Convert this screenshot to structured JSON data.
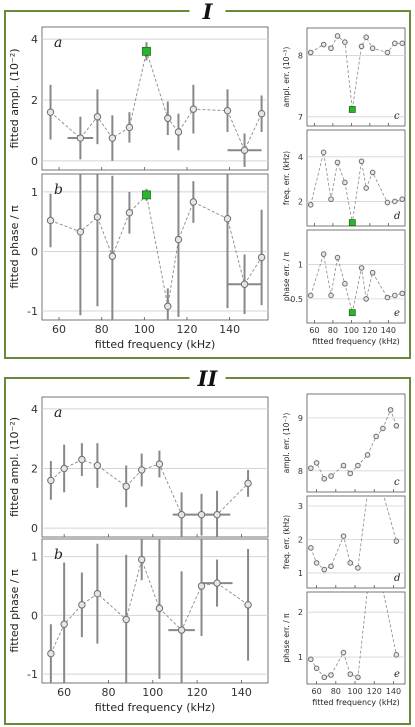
{
  "figure": {
    "block_labels": [
      "I",
      "II"
    ]
  },
  "colors": {
    "frame_border": "#6a8a3a",
    "data_gray": "#8a8a8a",
    "error_bar": "#888888",
    "grid": "#d4d4d4",
    "marker_face": "#e6e6e6",
    "highlight": "#2bb52b"
  },
  "chart_data": [
    {
      "id": "I-a",
      "type": "scatter",
      "panel_label": "a",
      "ylabel": "fitted ampl. (10⁻²)",
      "xlabel": "",
      "xlim": [
        52,
        158
      ],
      "ylim": [
        -0.3,
        4.4
      ],
      "yticks": [
        0,
        2,
        4
      ],
      "yticklabels": [
        "0",
        "2",
        "4"
      ],
      "xticks": [
        60,
        80,
        100,
        120,
        140
      ],
      "points": [
        {
          "x": 56,
          "y": 1.6,
          "yerr": 0.9
        },
        {
          "x": 70,
          "y": 0.75,
          "yerr": 0.7,
          "xerr": 6
        },
        {
          "x": 78,
          "y": 1.45,
          "yerr": 0.9
        },
        {
          "x": 85,
          "y": 0.75,
          "yerr": 0.75
        },
        {
          "x": 93,
          "y": 1.1,
          "yerr": 0.5
        },
        {
          "x": 101,
          "y": 3.6,
          "yerr": 0.3,
          "highlight": true
        },
        {
          "x": 111,
          "y": 1.4,
          "yerr": 0.55
        },
        {
          "x": 116,
          "y": 0.95,
          "yerr": 0.6
        },
        {
          "x": 123,
          "y": 1.7,
          "yerr": 0.8
        },
        {
          "x": 139,
          "y": 1.65,
          "yerr": 0.7
        },
        {
          "x": 147,
          "y": 0.35,
          "yerr": 0.55,
          "xerr": 8
        },
        {
          "x": 155,
          "y": 1.55,
          "yerr": 0.6
        }
      ]
    },
    {
      "id": "I-b",
      "type": "scatter",
      "panel_label": "b",
      "ylabel": "fitted phase / π",
      "xlabel": "fitted frequency (kHz)",
      "xlim": [
        52,
        158
      ],
      "ylim": [
        -1.15,
        1.3
      ],
      "yticks": [
        -1,
        0,
        1
      ],
      "yticklabels": [
        "-1",
        "0",
        "1"
      ],
      "xticks": [
        60,
        80,
        100,
        120,
        140
      ],
      "xticklabels": [
        "60",
        "80",
        "100",
        "120",
        "140"
      ],
      "points": [
        {
          "x": 56,
          "y": 0.52,
          "yerr": 0.45
        },
        {
          "x": 70,
          "y": 0.33,
          "yerr": 1.4
        },
        {
          "x": 78,
          "y": 0.58,
          "yerr": 1.5
        },
        {
          "x": 85,
          "y": -0.08,
          "yerr": 1.35
        },
        {
          "x": 93,
          "y": 0.65,
          "yerr": 0.35
        },
        {
          "x": 101,
          "y": 0.95,
          "yerr": 0.1,
          "highlight": true
        },
        {
          "x": 111,
          "y": -0.92,
          "yerr": 0.3
        },
        {
          "x": 116,
          "y": 0.2,
          "yerr": 1.3
        },
        {
          "x": 123,
          "y": 0.83,
          "yerr": 0.35
        },
        {
          "x": 139,
          "y": 0.55,
          "yerr": 1.5
        },
        {
          "x": 147,
          "y": -0.55,
          "yerr": 0.5,
          "xerr": 8
        },
        {
          "x": 155,
          "y": -0.1,
          "yerr": 0.8
        }
      ]
    },
    {
      "id": "I-c",
      "type": "line",
      "panel_label": "c",
      "ylabel": "ampl. err. (10⁻³)",
      "xlabel": "",
      "xlim": [
        52,
        158
      ],
      "ylim": [
        6.85,
        8.45
      ],
      "yticks": [
        7,
        8
      ],
      "yticklabels": [
        "7",
        "8"
      ],
      "xticks": [
        60,
        80,
        100,
        120,
        140
      ],
      "points": [
        {
          "x": 56,
          "y": 8.05
        },
        {
          "x": 70,
          "y": 8.18
        },
        {
          "x": 78,
          "y": 8.12
        },
        {
          "x": 85,
          "y": 8.32
        },
        {
          "x": 93,
          "y": 8.22
        },
        {
          "x": 101,
          "y": 7.12,
          "highlight": true
        },
        {
          "x": 111,
          "y": 8.15
        },
        {
          "x": 116,
          "y": 8.3
        },
        {
          "x": 123,
          "y": 8.12
        },
        {
          "x": 139,
          "y": 8.05
        },
        {
          "x": 147,
          "y": 8.2
        },
        {
          "x": 155,
          "y": 8.2
        }
      ]
    },
    {
      "id": "I-d",
      "type": "line",
      "panel_label": "d",
      "ylabel": "freq. err. (kHz)",
      "xlabel": "",
      "xlim": [
        52,
        158
      ],
      "ylim": [
        0.9,
        5.2
      ],
      "yticks": [
        2,
        4
      ],
      "yticklabels": [
        "2",
        "4"
      ],
      "xticks": [
        60,
        80,
        100,
        120,
        140
      ],
      "points": [
        {
          "x": 56,
          "y": 1.85
        },
        {
          "x": 70,
          "y": 4.2
        },
        {
          "x": 78,
          "y": 2.1
        },
        {
          "x": 85,
          "y": 3.75
        },
        {
          "x": 93,
          "y": 2.85
        },
        {
          "x": 101,
          "y": 1.05,
          "highlight": true
        },
        {
          "x": 111,
          "y": 3.8
        },
        {
          "x": 116,
          "y": 2.6
        },
        {
          "x": 123,
          "y": 3.3
        },
        {
          "x": 139,
          "y": 1.95
        },
        {
          "x": 147,
          "y": 2.0
        },
        {
          "x": 155,
          "y": 2.1
        }
      ]
    },
    {
      "id": "I-e",
      "type": "line",
      "panel_label": "e",
      "ylabel": "phase err. / π",
      "xlabel": "fitted frequency (kHz)",
      "xlim": [
        52,
        158
      ],
      "ylim": [
        0.15,
        1.5
      ],
      "yticks": [
        0.5,
        1
      ],
      "yticklabels": [
        "0.5",
        "1"
      ],
      "xticks": [
        60,
        80,
        100,
        120,
        140
      ],
      "xticklabels": [
        "60",
        "80",
        "100",
        "120",
        "140"
      ],
      "points": [
        {
          "x": 56,
          "y": 0.55
        },
        {
          "x": 70,
          "y": 1.15
        },
        {
          "x": 78,
          "y": 0.55
        },
        {
          "x": 85,
          "y": 1.1
        },
        {
          "x": 93,
          "y": 0.72
        },
        {
          "x": 101,
          "y": 0.3,
          "highlight": true
        },
        {
          "x": 111,
          "y": 0.95
        },
        {
          "x": 116,
          "y": 0.5
        },
        {
          "x": 123,
          "y": 0.88
        },
        {
          "x": 139,
          "y": 0.52
        },
        {
          "x": 147,
          "y": 0.55
        },
        {
          "x": 155,
          "y": 0.58
        }
      ]
    },
    {
      "id": "II-a",
      "type": "scatter",
      "panel_label": "a",
      "ylabel": "fitted ampl. (10⁻²)",
      "xlabel": "",
      "xlim": [
        50,
        152
      ],
      "ylim": [
        -0.3,
        4.4
      ],
      "yticks": [
        0,
        2,
        4
      ],
      "yticklabels": [
        "0",
        "2",
        "4"
      ],
      "xticks": [
        60,
        80,
        100,
        120,
        140
      ],
      "points": [
        {
          "x": 54,
          "y": 1.6,
          "yerr": 0.65
        },
        {
          "x": 60,
          "y": 2.0,
          "yerr": 0.8
        },
        {
          "x": 68,
          "y": 2.3,
          "yerr": 0.55
        },
        {
          "x": 75,
          "y": 2.1,
          "yerr": 0.75
        },
        {
          "x": 88,
          "y": 1.4,
          "yerr": 0.7
        },
        {
          "x": 95,
          "y": 1.95,
          "yerr": 0.55
        },
        {
          "x": 103,
          "y": 2.15,
          "yerr": 0.45
        },
        {
          "x": 113,
          "y": 0.45,
          "yerr": 0.75,
          "xerr": 4
        },
        {
          "x": 122,
          "y": 0.45,
          "yerr": 0.7,
          "xerr": 5
        },
        {
          "x": 129,
          "y": 0.45,
          "yerr": 0.8,
          "xerr": 6
        },
        {
          "x": 143,
          "y": 1.5,
          "yerr": 0.45
        }
      ]
    },
    {
      "id": "II-b",
      "type": "scatter",
      "panel_label": "b",
      "ylabel": "fitted phase / π",
      "xlabel": "fitted frequency (kHz)",
      "xlim": [
        50,
        152
      ],
      "ylim": [
        -1.15,
        1.3
      ],
      "yticks": [
        -1,
        0,
        1
      ],
      "yticklabels": [
        "-1",
        "0",
        "1"
      ],
      "xticks": [
        60,
        80,
        100,
        120,
        140
      ],
      "xticklabels": [
        "60",
        "80",
        "100",
        "120",
        "140"
      ],
      "points": [
        {
          "x": 54,
          "y": -0.65,
          "yerr": 0.5
        },
        {
          "x": 60,
          "y": -0.15,
          "yerr": 1.05
        },
        {
          "x": 68,
          "y": 0.18,
          "yerr": 0.55
        },
        {
          "x": 75,
          "y": 0.37,
          "yerr": 0.85
        },
        {
          "x": 88,
          "y": -0.07,
          "yerr": 1.1
        },
        {
          "x": 95,
          "y": 0.95,
          "yerr": 0.35
        },
        {
          "x": 103,
          "y": 0.12,
          "yerr": 1.2
        },
        {
          "x": 113,
          "y": -0.25,
          "yerr": 1.0,
          "xerr": 6
        },
        {
          "x": 122,
          "y": 0.5,
          "yerr": 0.85
        },
        {
          "x": 129,
          "y": 0.55,
          "yerr": 0.4,
          "xerr": 7
        },
        {
          "x": 143,
          "y": 0.18,
          "yerr": 0.95
        }
      ]
    },
    {
      "id": "II-c",
      "type": "line",
      "panel_label": "c",
      "ylabel": "ampl. err. (10⁻³)",
      "xlabel": "",
      "xlim": [
        50,
        152
      ],
      "ylim": [
        7.6,
        9.45
      ],
      "yticks": [
        8,
        9
      ],
      "yticklabels": [
        "8",
        "9"
      ],
      "xticks": [
        60,
        80,
        100,
        120,
        140
      ],
      "points": [
        {
          "x": 54,
          "y": 8.05
        },
        {
          "x": 60,
          "y": 8.15
        },
        {
          "x": 68,
          "y": 7.85
        },
        {
          "x": 75,
          "y": 7.9
        },
        {
          "x": 88,
          "y": 8.1
        },
        {
          "x": 95,
          "y": 7.95
        },
        {
          "x": 103,
          "y": 8.1
        },
        {
          "x": 113,
          "y": 8.3
        },
        {
          "x": 122,
          "y": 8.65
        },
        {
          "x": 129,
          "y": 8.8
        },
        {
          "x": 137,
          "y": 9.15
        },
        {
          "x": 143,
          "y": 8.85
        }
      ]
    },
    {
      "id": "II-d",
      "type": "line",
      "panel_label": "d",
      "ylabel": "freq. err. (kHz)",
      "xlabel": "",
      "xlim": [
        50,
        152
      ],
      "ylim": [
        0.55,
        3.3
      ],
      "yticks": [
        1,
        2,
        3
      ],
      "yticklabels": [
        "1",
        "2",
        "3"
      ],
      "xticks": [
        60,
        80,
        100,
        120,
        140
      ],
      "points": [
        {
          "x": 54,
          "y": 1.75
        },
        {
          "x": 60,
          "y": 1.3
        },
        {
          "x": 68,
          "y": 1.1
        },
        {
          "x": 75,
          "y": 1.2
        },
        {
          "x": 88,
          "y": 2.1
        },
        {
          "x": 95,
          "y": 1.3
        },
        {
          "x": 103,
          "y": 1.15
        },
        {
          "x": 113,
          "y": 3.4
        },
        {
          "x": 122,
          "y": 3.4
        },
        {
          "x": 129,
          "y": 3.4
        },
        {
          "x": 143,
          "y": 1.95
        }
      ]
    },
    {
      "id": "II-e",
      "type": "line",
      "panel_label": "e",
      "ylabel": "phase err. / π",
      "xlabel": "fitted frequency (kHz)",
      "xlim": [
        50,
        152
      ],
      "ylim": [
        0.4,
        2.45
      ],
      "yticks": [
        1,
        2
      ],
      "yticklabels": [
        "1",
        "2"
      ],
      "xticks": [
        60,
        80,
        100,
        120,
        140
      ],
      "xticklabels": [
        "60",
        "80",
        "100",
        "120",
        "140"
      ],
      "points": [
        {
          "x": 54,
          "y": 0.95
        },
        {
          "x": 60,
          "y": 0.75
        },
        {
          "x": 68,
          "y": 0.55
        },
        {
          "x": 75,
          "y": 0.6
        },
        {
          "x": 88,
          "y": 1.1
        },
        {
          "x": 95,
          "y": 0.62
        },
        {
          "x": 103,
          "y": 0.55
        },
        {
          "x": 113,
          "y": 2.5
        },
        {
          "x": 122,
          "y": 2.5
        },
        {
          "x": 129,
          "y": 2.5
        },
        {
          "x": 143,
          "y": 1.05
        }
      ]
    }
  ]
}
